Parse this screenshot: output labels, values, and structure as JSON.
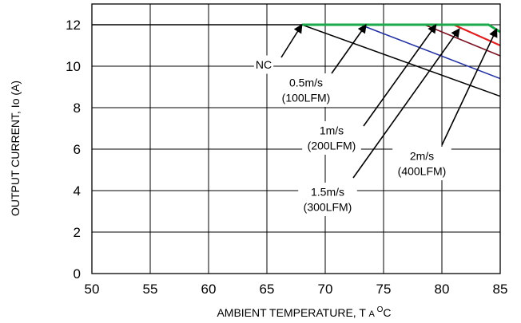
{
  "chart_data": {
    "type": "line",
    "title": "",
    "xlabel": "AMBIENT TEMPERATURE, T",
    "xlabel_sub": "A",
    "xlabel_sup": "O",
    "xlabel_unit": "C",
    "ylabel": "OUTPUT CURRENT, Io  (A)",
    "xlim": [
      50,
      85
    ],
    "ylim": [
      0,
      13
    ],
    "xticks": [
      50,
      55,
      60,
      65,
      70,
      75,
      80,
      85
    ],
    "yticks": [
      0,
      2,
      4,
      6,
      8,
      10,
      12
    ],
    "grid": true,
    "series": [
      {
        "name": "NC",
        "color": "#000000",
        "points": [
          [
            50,
            12
          ],
          [
            68,
            12
          ],
          [
            85,
            8.55
          ]
        ]
      },
      {
        "name": "0.5m/s (100LFM)",
        "color": "#1f2ea0",
        "points": [
          [
            73,
            12
          ],
          [
            85,
            9.4
          ]
        ]
      },
      {
        "name": "1m/s (200LFM)",
        "color": "#7a1020",
        "points": [
          [
            78.5,
            12
          ],
          [
            85,
            10.5
          ]
        ]
      },
      {
        "name": "1.5m/s (300LFM)",
        "color": "#e02020",
        "points": [
          [
            81,
            12
          ],
          [
            85,
            11
          ]
        ]
      },
      {
        "name": "2m/s (400LFM)",
        "color": "#1aaa4a",
        "points": [
          [
            68,
            12
          ],
          [
            84,
            12
          ],
          [
            85,
            11.65
          ]
        ]
      }
    ],
    "annotations": [
      {
        "lines": [
          "NC"
        ],
        "arrow_to": [
          68,
          12
        ]
      },
      {
        "lines": [
          "0.5m/s",
          "(100LFM)"
        ],
        "arrow_to": [
          73.5,
          12
        ]
      },
      {
        "lines": [
          "1m/s",
          "(200LFM)"
        ],
        "arrow_to": [
          79.5,
          12
        ]
      },
      {
        "lines": [
          "1.5m/s",
          "(300LFM)"
        ],
        "arrow_to": [
          81.5,
          11.8
        ]
      },
      {
        "lines": [
          "2m/s",
          "(400LFM)"
        ],
        "arrow_to": [
          84.7,
          11.8
        ]
      }
    ]
  }
}
